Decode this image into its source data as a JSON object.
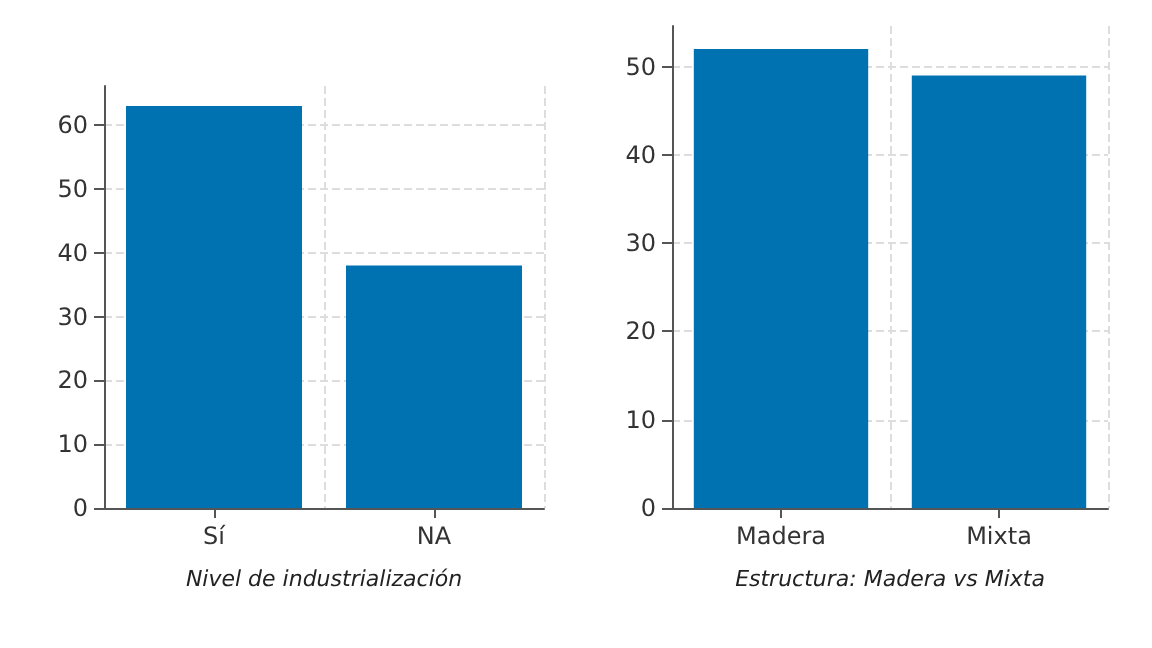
{
  "chart_data": [
    {
      "type": "bar",
      "xlabel": "Nivel de industrialización",
      "categories": [
        "Sí",
        "NA"
      ],
      "values": [
        63,
        38
      ],
      "color": "#0072b2",
      "ylim": [
        0,
        66.15
      ],
      "yticks": [
        0,
        10,
        20,
        30,
        40,
        50,
        60
      ],
      "grid": true
    },
    {
      "type": "bar",
      "xlabel": "Estructura: Madera vs Mixta",
      "categories": [
        "Madera",
        "Mixta"
      ],
      "values": [
        52,
        49
      ],
      "color": "#0072b2",
      "ylim": [
        0,
        54.6
      ],
      "yticks": [
        0,
        10,
        20,
        30,
        40,
        50
      ],
      "grid": true
    }
  ]
}
